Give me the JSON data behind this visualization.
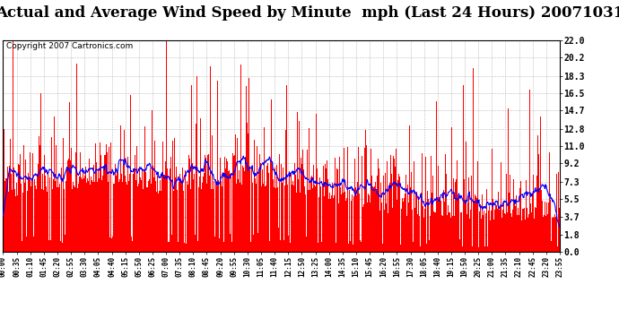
{
  "title": "Actual and Average Wind Speed by Minute  mph (Last 24 Hours) 20071031",
  "copyright": "Copyright 2007 Cartronics.com",
  "yticks": [
    0.0,
    1.8,
    3.7,
    5.5,
    7.3,
    9.2,
    11.0,
    12.8,
    14.7,
    16.5,
    18.3,
    20.2,
    22.0
  ],
  "ymin": 0.0,
  "ymax": 22.0,
  "bar_color": "#FF0000",
  "line_color": "#0000FF",
  "background_color": "#FFFFFF",
  "grid_color": "#BBBBBB",
  "title_fontsize": 12,
  "copyright_fontsize": 6.5,
  "seed": 12345,
  "n_points": 1440,
  "avg_window": 30,
  "time_labels": [
    "00:00",
    "00:35",
    "01:10",
    "01:45",
    "02:20",
    "02:55",
    "03:30",
    "04:05",
    "04:40",
    "05:15",
    "05:50",
    "06:25",
    "07:00",
    "07:35",
    "08:10",
    "08:45",
    "09:20",
    "09:55",
    "10:30",
    "11:05",
    "11:40",
    "12:15",
    "12:50",
    "13:25",
    "14:00",
    "14:35",
    "15:10",
    "15:45",
    "16:20",
    "16:55",
    "17:30",
    "18:05",
    "18:40",
    "19:15",
    "19:50",
    "20:25",
    "21:00",
    "21:35",
    "22:10",
    "22:45",
    "23:20",
    "23:55"
  ]
}
